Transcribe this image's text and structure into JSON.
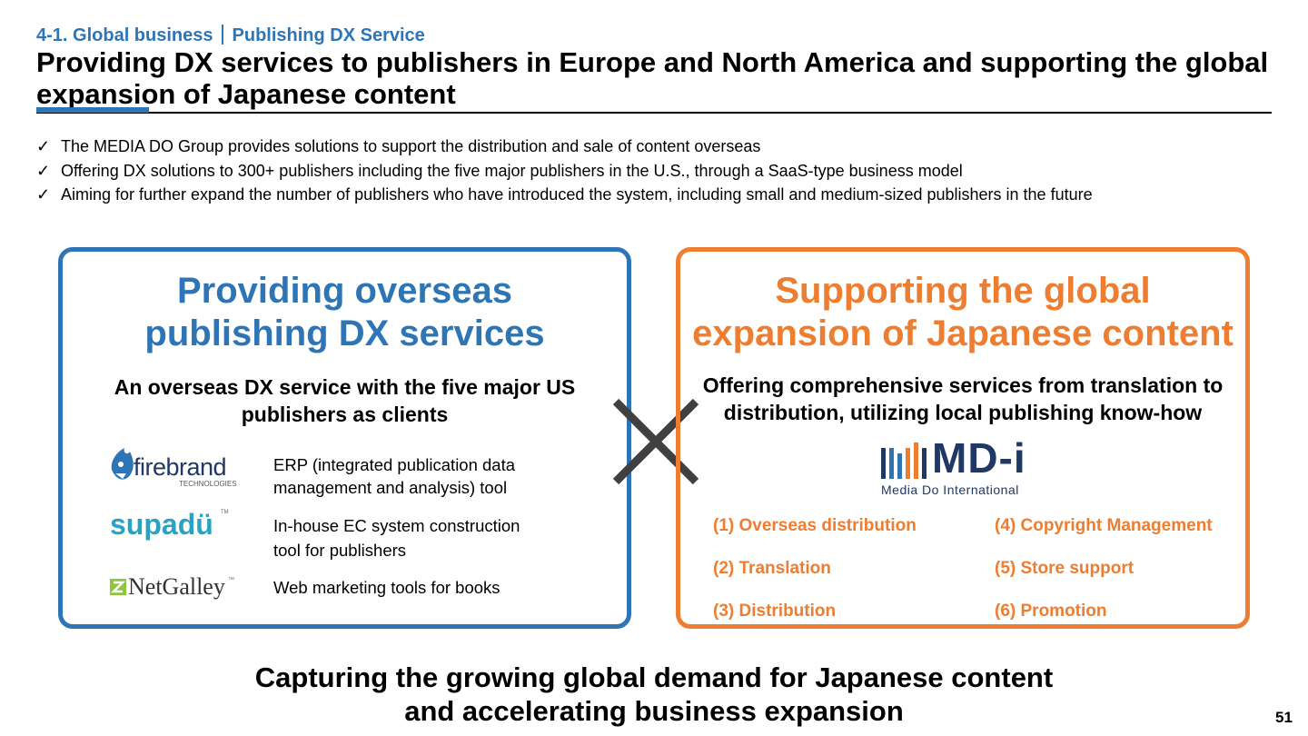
{
  "header": {
    "section": "4-1. Global business",
    "subsection": "Publishing DX Service",
    "title": "Providing DX services to publishers in Europe and North America and supporting the global expansion of Japanese content"
  },
  "bullets": [
    "The MEDIA DO Group provides solutions to support the distribution and sale of content overseas",
    "Offering DX solutions to 300+ publishers including the five major publishers in the U.S., through a SaaS-type business model",
    "Aiming for further expand the number of publishers who have introduced the system, including small and medium-sized publishers in the future"
  ],
  "bullet_mark": "✓",
  "left_box": {
    "heading_line1": "Providing overseas",
    "heading_line2": "publishing DX services",
    "subheading_line1": "An overseas DX service with the five major US",
    "subheading_line2": "publishers as clients",
    "services": [
      {
        "logo": "firebrand",
        "logo_sub": "TECHNOLOGIES",
        "line1": "ERP (integrated publication data",
        "line2": "management and analysis) tool"
      },
      {
        "logo": "supadü",
        "logo_sub": "TM",
        "line1": "In-house EC system construction",
        "line2": "tool for publishers"
      },
      {
        "logo": "NetGalley",
        "logo_sub": "™",
        "line1": "Web marketing tools for books",
        "line2": ""
      }
    ]
  },
  "right_box": {
    "heading_line1": "Supporting the global",
    "heading_line2": "expansion of Japanese content",
    "subheading_line1": "Offering comprehensive services from translation to",
    "subheading_line2": "distribution, utilizing local publishing know-how",
    "logo_text": "MD-i",
    "logo_sub": "Media Do International",
    "items": [
      "(1)  Overseas distribution",
      "(4) Copyright Management",
      "(2) Translation",
      "(5) Store support",
      "(3) Distribution",
      "(6) Promotion"
    ]
  },
  "conclusion_line1": "Capturing the growing global demand for Japanese content",
  "conclusion_line2": "and accelerating business expansion",
  "page_number": "51",
  "colors": {
    "blue": "#2e75b6",
    "orange": "#ed7d31",
    "cross": "#404040"
  }
}
